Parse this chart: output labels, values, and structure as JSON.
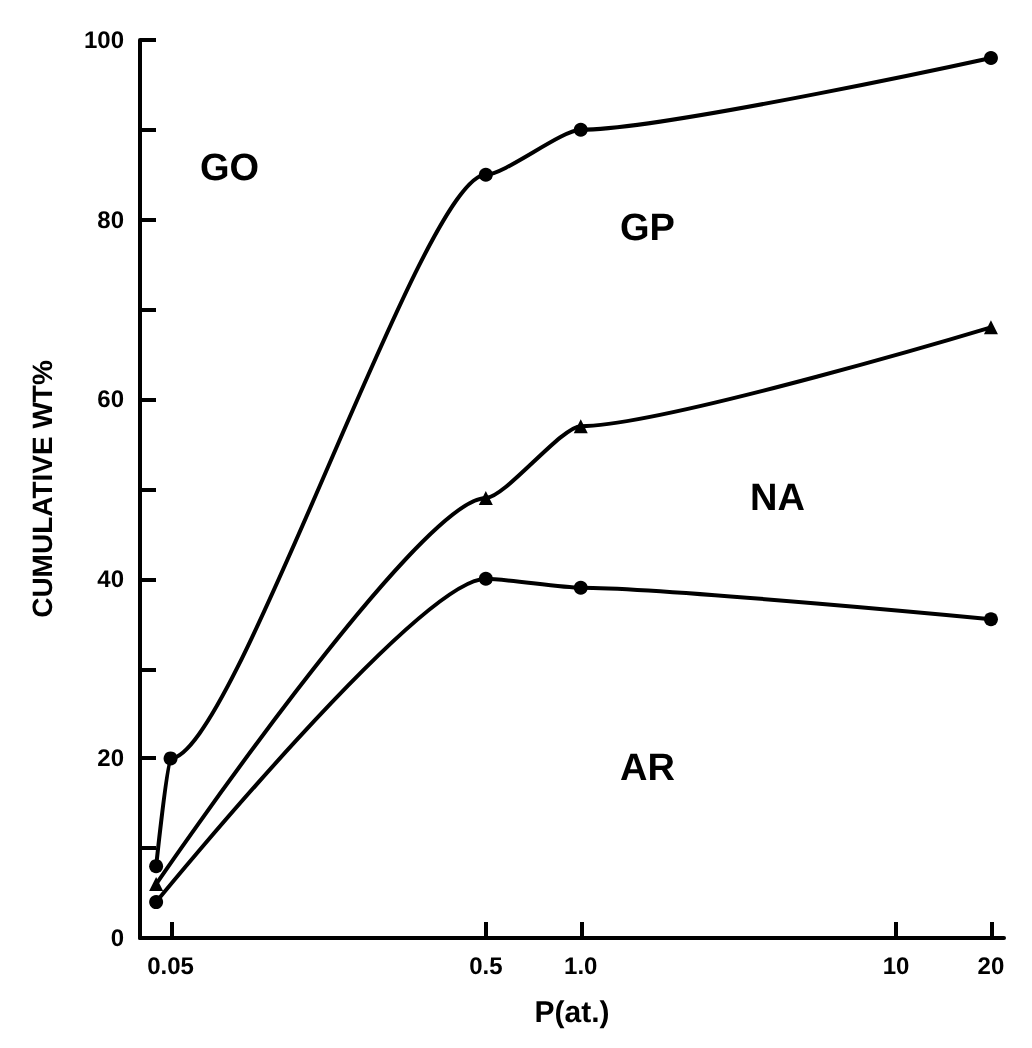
{
  "chart_data": {
    "type": "line",
    "xlabel": "P(at.)",
    "ylabel": "CUMULATIVE WT%",
    "log": "x",
    "xlim": [
      0.04,
      22
    ],
    "ylim": [
      0,
      100
    ],
    "xticks": [
      0.05,
      0.5,
      {
        "value": 1,
        "label": "1.0"
      },
      10,
      20
    ],
    "yticks": [
      0,
      {
        "value": 10,
        "label": null
      },
      20,
      {
        "value": 30,
        "label": null
      },
      40,
      {
        "value": 50,
        "label": null
      },
      60,
      {
        "value": 70,
        "label": null
      },
      80,
      {
        "value": 90,
        "label": null
      },
      100
    ],
    "grid": false,
    "line_style": "solid",
    "series": [
      {
        "color": "#000000",
        "marker": "circle",
        "x": [
          0.045,
          0.05,
          0.5,
          1,
          20
        ],
        "values": [
          8,
          20,
          85,
          90,
          98
        ]
      },
      {
        "color": "#000000",
        "marker": "triangle",
        "x": [
          0.045,
          0.5,
          1,
          20
        ],
        "values": [
          6,
          49,
          57,
          68
        ]
      },
      {
        "color": "#000000",
        "marker": "circle",
        "x": [
          0.045,
          0.5,
          1,
          20
        ],
        "values": [
          4,
          40,
          39,
          35.5
        ]
      }
    ],
    "annotations": [
      "GO",
      "GP",
      "NA",
      "AR"
    ]
  }
}
